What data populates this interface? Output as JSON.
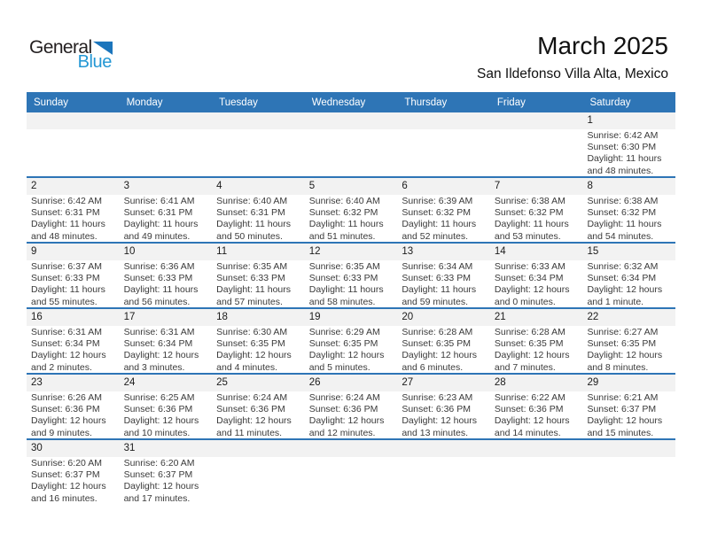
{
  "logo": {
    "general": "General",
    "blue": "Blue"
  },
  "header": {
    "title": "March 2025",
    "subtitle": "San Ildefonso Villa Alta, Mexico"
  },
  "colors": {
    "header_blue": "#2E75B6",
    "separator_blue": "#2E75B6",
    "band_gray": "#F2F2F2",
    "logo_text_blue": "#2397D4",
    "logo_triangle_blue": "#1B75BC",
    "detail_text": "#3A3A3A"
  },
  "calendar": {
    "day_headers": [
      "Sunday",
      "Monday",
      "Tuesday",
      "Wednesday",
      "Thursday",
      "Friday",
      "Saturday"
    ],
    "weeks": [
      [
        null,
        null,
        null,
        null,
        null,
        null,
        {
          "date": "1",
          "sunrise": "Sunrise: 6:42 AM",
          "sunset": "Sunset: 6:30 PM",
          "daylight_line1": "Daylight: 11 hours",
          "daylight_line2": "and 48 minutes."
        }
      ],
      [
        {
          "date": "2",
          "sunrise": "Sunrise: 6:42 AM",
          "sunset": "Sunset: 6:31 PM",
          "daylight_line1": "Daylight: 11 hours",
          "daylight_line2": "and 48 minutes."
        },
        {
          "date": "3",
          "sunrise": "Sunrise: 6:41 AM",
          "sunset": "Sunset: 6:31 PM",
          "daylight_line1": "Daylight: 11 hours",
          "daylight_line2": "and 49 minutes."
        },
        {
          "date": "4",
          "sunrise": "Sunrise: 6:40 AM",
          "sunset": "Sunset: 6:31 PM",
          "daylight_line1": "Daylight: 11 hours",
          "daylight_line2": "and 50 minutes."
        },
        {
          "date": "5",
          "sunrise": "Sunrise: 6:40 AM",
          "sunset": "Sunset: 6:32 PM",
          "daylight_line1": "Daylight: 11 hours",
          "daylight_line2": "and 51 minutes."
        },
        {
          "date": "6",
          "sunrise": "Sunrise: 6:39 AM",
          "sunset": "Sunset: 6:32 PM",
          "daylight_line1": "Daylight: 11 hours",
          "daylight_line2": "and 52 minutes."
        },
        {
          "date": "7",
          "sunrise": "Sunrise: 6:38 AM",
          "sunset": "Sunset: 6:32 PM",
          "daylight_line1": "Daylight: 11 hours",
          "daylight_line2": "and 53 minutes."
        },
        {
          "date": "8",
          "sunrise": "Sunrise: 6:38 AM",
          "sunset": "Sunset: 6:32 PM",
          "daylight_line1": "Daylight: 11 hours",
          "daylight_line2": "and 54 minutes."
        }
      ],
      [
        {
          "date": "9",
          "sunrise": "Sunrise: 6:37 AM",
          "sunset": "Sunset: 6:33 PM",
          "daylight_line1": "Daylight: 11 hours",
          "daylight_line2": "and 55 minutes."
        },
        {
          "date": "10",
          "sunrise": "Sunrise: 6:36 AM",
          "sunset": "Sunset: 6:33 PM",
          "daylight_line1": "Daylight: 11 hours",
          "daylight_line2": "and 56 minutes."
        },
        {
          "date": "11",
          "sunrise": "Sunrise: 6:35 AM",
          "sunset": "Sunset: 6:33 PM",
          "daylight_line1": "Daylight: 11 hours",
          "daylight_line2": "and 57 minutes."
        },
        {
          "date": "12",
          "sunrise": "Sunrise: 6:35 AM",
          "sunset": "Sunset: 6:33 PM",
          "daylight_line1": "Daylight: 11 hours",
          "daylight_line2": "and 58 minutes."
        },
        {
          "date": "13",
          "sunrise": "Sunrise: 6:34 AM",
          "sunset": "Sunset: 6:33 PM",
          "daylight_line1": "Daylight: 11 hours",
          "daylight_line2": "and 59 minutes."
        },
        {
          "date": "14",
          "sunrise": "Sunrise: 6:33 AM",
          "sunset": "Sunset: 6:34 PM",
          "daylight_line1": "Daylight: 12 hours",
          "daylight_line2": "and 0 minutes."
        },
        {
          "date": "15",
          "sunrise": "Sunrise: 6:32 AM",
          "sunset": "Sunset: 6:34 PM",
          "daylight_line1": "Daylight: 12 hours",
          "daylight_line2": "and 1 minute."
        }
      ],
      [
        {
          "date": "16",
          "sunrise": "Sunrise: 6:31 AM",
          "sunset": "Sunset: 6:34 PM",
          "daylight_line1": "Daylight: 12 hours",
          "daylight_line2": "and 2 minutes."
        },
        {
          "date": "17",
          "sunrise": "Sunrise: 6:31 AM",
          "sunset": "Sunset: 6:34 PM",
          "daylight_line1": "Daylight: 12 hours",
          "daylight_line2": "and 3 minutes."
        },
        {
          "date": "18",
          "sunrise": "Sunrise: 6:30 AM",
          "sunset": "Sunset: 6:35 PM",
          "daylight_line1": "Daylight: 12 hours",
          "daylight_line2": "and 4 minutes."
        },
        {
          "date": "19",
          "sunrise": "Sunrise: 6:29 AM",
          "sunset": "Sunset: 6:35 PM",
          "daylight_line1": "Daylight: 12 hours",
          "daylight_line2": "and 5 minutes."
        },
        {
          "date": "20",
          "sunrise": "Sunrise: 6:28 AM",
          "sunset": "Sunset: 6:35 PM",
          "daylight_line1": "Daylight: 12 hours",
          "daylight_line2": "and 6 minutes."
        },
        {
          "date": "21",
          "sunrise": "Sunrise: 6:28 AM",
          "sunset": "Sunset: 6:35 PM",
          "daylight_line1": "Daylight: 12 hours",
          "daylight_line2": "and 7 minutes."
        },
        {
          "date": "22",
          "sunrise": "Sunrise: 6:27 AM",
          "sunset": "Sunset: 6:35 PM",
          "daylight_line1": "Daylight: 12 hours",
          "daylight_line2": "and 8 minutes."
        }
      ],
      [
        {
          "date": "23",
          "sunrise": "Sunrise: 6:26 AM",
          "sunset": "Sunset: 6:36 PM",
          "daylight_line1": "Daylight: 12 hours",
          "daylight_line2": "and 9 minutes."
        },
        {
          "date": "24",
          "sunrise": "Sunrise: 6:25 AM",
          "sunset": "Sunset: 6:36 PM",
          "daylight_line1": "Daylight: 12 hours",
          "daylight_line2": "and 10 minutes."
        },
        {
          "date": "25",
          "sunrise": "Sunrise: 6:24 AM",
          "sunset": "Sunset: 6:36 PM",
          "daylight_line1": "Daylight: 12 hours",
          "daylight_line2": "and 11 minutes."
        },
        {
          "date": "26",
          "sunrise": "Sunrise: 6:24 AM",
          "sunset": "Sunset: 6:36 PM",
          "daylight_line1": "Daylight: 12 hours",
          "daylight_line2": "and 12 minutes."
        },
        {
          "date": "27",
          "sunrise": "Sunrise: 6:23 AM",
          "sunset": "Sunset: 6:36 PM",
          "daylight_line1": "Daylight: 12 hours",
          "daylight_line2": "and 13 minutes."
        },
        {
          "date": "28",
          "sunrise": "Sunrise: 6:22 AM",
          "sunset": "Sunset: 6:36 PM",
          "daylight_line1": "Daylight: 12 hours",
          "daylight_line2": "and 14 minutes."
        },
        {
          "date": "29",
          "sunrise": "Sunrise: 6:21 AM",
          "sunset": "Sunset: 6:37 PM",
          "daylight_line1": "Daylight: 12 hours",
          "daylight_line2": "and 15 minutes."
        }
      ],
      [
        {
          "date": "30",
          "sunrise": "Sunrise: 6:20 AM",
          "sunset": "Sunset: 6:37 PM",
          "daylight_line1": "Daylight: 12 hours",
          "daylight_line2": "and 16 minutes."
        },
        {
          "date": "31",
          "sunrise": "Sunrise: 6:20 AM",
          "sunset": "Sunset: 6:37 PM",
          "daylight_line1": "Daylight: 12 hours",
          "daylight_line2": "and 17 minutes."
        },
        null,
        null,
        null,
        null,
        null
      ]
    ]
  }
}
